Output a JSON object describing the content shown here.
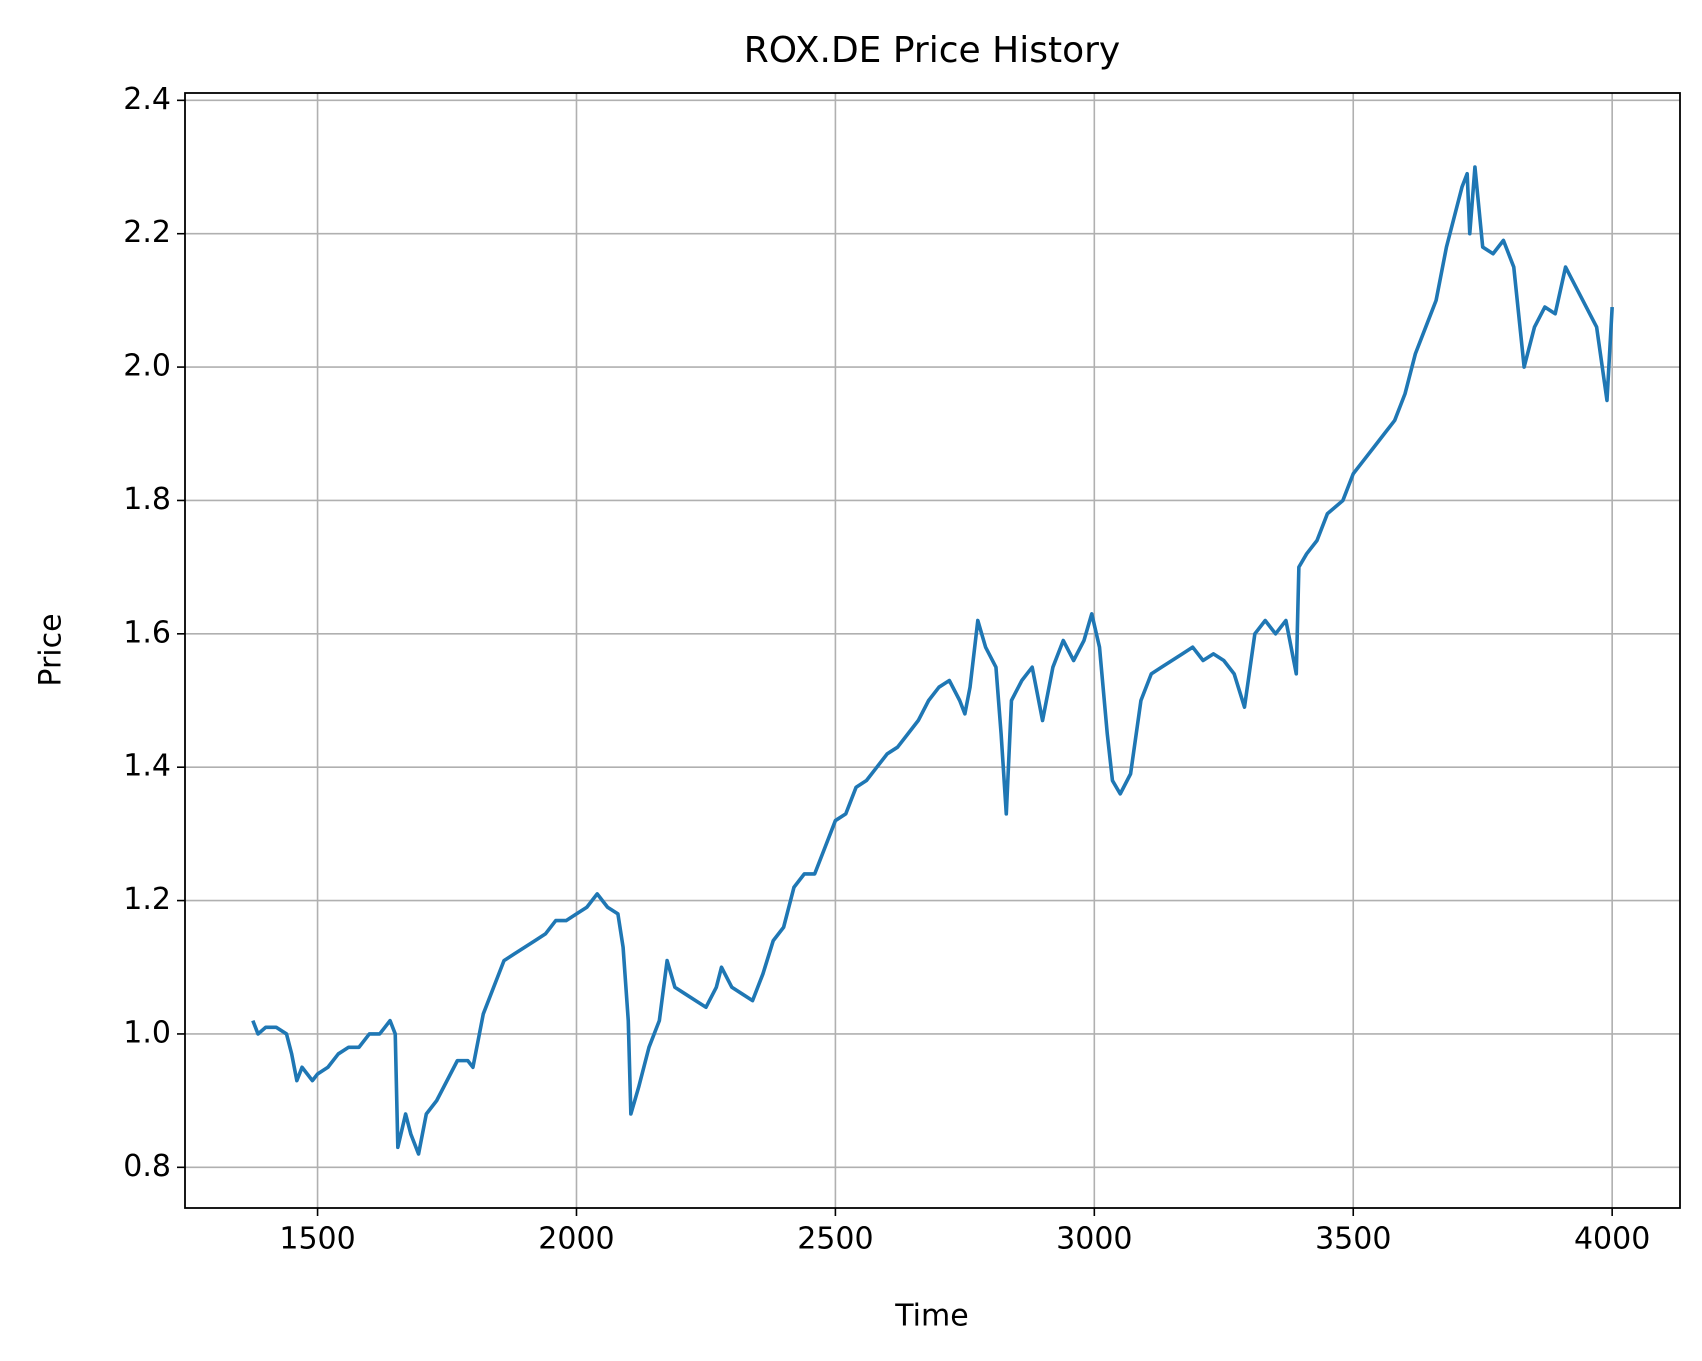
{
  "chart_data": {
    "type": "line",
    "title": "ROX.DE Price History",
    "x_label": "Time",
    "y_label": "Price",
    "color": "#1f77b4",
    "grid": true,
    "xlim": [
      1244,
      4131
    ],
    "ylim": [
      0.739,
      2.411
    ],
    "xticks": [
      1500,
      2000,
      2500,
      3000,
      3500,
      4000
    ],
    "yticks": [
      0.8,
      {
        "value": 1.0,
        "label": "1.0"
      },
      1.2,
      1.4,
      1.6,
      1.8,
      {
        "value": 2.0,
        "label": "2.0"
      },
      2.2,
      2.4
    ],
    "x": [
      1375,
      1385,
      1400,
      1420,
      1440,
      1450,
      1460,
      1470,
      1490,
      1500,
      1520,
      1540,
      1560,
      1580,
      1600,
      1620,
      1640,
      1650,
      1655,
      1670,
      1680,
      1695,
      1710,
      1730,
      1750,
      1770,
      1790,
      1800,
      1820,
      1840,
      1860,
      1880,
      1900,
      1920,
      1940,
      1960,
      1980,
      2000,
      2020,
      2040,
      2060,
      2080,
      2090,
      2100,
      2105,
      2120,
      2140,
      2160,
      2175,
      2190,
      2210,
      2230,
      2250,
      2270,
      2280,
      2300,
      2320,
      2340,
      2360,
      2380,
      2400,
      2420,
      2440,
      2460,
      2480,
      2500,
      2520,
      2540,
      2560,
      2580,
      2600,
      2620,
      2640,
      2660,
      2680,
      2700,
      2720,
      2740,
      2750,
      2760,
      2775,
      2790,
      2810,
      2820,
      2830,
      2840,
      2860,
      2880,
      2900,
      2920,
      2940,
      2960,
      2980,
      2995,
      3010,
      3025,
      3035,
      3050,
      3070,
      3090,
      3110,
      3130,
      3150,
      3170,
      3190,
      3210,
      3230,
      3250,
      3270,
      3290,
      3310,
      3330,
      3350,
      3370,
      3390,
      3395,
      3410,
      3430,
      3450,
      3480,
      3500,
      3520,
      3540,
      3560,
      3580,
      3600,
      3620,
      3640,
      3660,
      3680,
      3700,
      3710,
      3720,
      3725,
      3735,
      3750,
      3770,
      3790,
      3810,
      3830,
      3850,
      3870,
      3890,
      3910,
      3930,
      3950,
      3970,
      3990,
      4000
    ],
    "values": [
      1.02,
      1.0,
      1.01,
      1.01,
      1.0,
      0.97,
      0.93,
      0.95,
      0.93,
      0.94,
      0.95,
      0.97,
      0.98,
      0.98,
      1.0,
      1.0,
      1.02,
      1.0,
      0.83,
      0.88,
      0.85,
      0.82,
      0.88,
      0.9,
      0.93,
      0.96,
      0.96,
      0.95,
      1.03,
      1.07,
      1.11,
      1.12,
      1.13,
      1.14,
      1.15,
      1.17,
      1.17,
      1.18,
      1.19,
      1.21,
      1.19,
      1.18,
      1.13,
      1.02,
      0.88,
      0.92,
      0.98,
      1.02,
      1.11,
      1.07,
      1.06,
      1.05,
      1.04,
      1.07,
      1.1,
      1.07,
      1.06,
      1.05,
      1.09,
      1.14,
      1.16,
      1.22,
      1.24,
      1.24,
      1.28,
      1.32,
      1.33,
      1.37,
      1.38,
      1.4,
      1.42,
      1.43,
      1.45,
      1.47,
      1.5,
      1.52,
      1.53,
      1.5,
      1.48,
      1.52,
      1.62,
      1.58,
      1.55,
      1.45,
      1.33,
      1.5,
      1.53,
      1.55,
      1.47,
      1.55,
      1.59,
      1.56,
      1.59,
      1.63,
      1.58,
      1.45,
      1.38,
      1.36,
      1.39,
      1.5,
      1.54,
      1.55,
      1.56,
      1.57,
      1.58,
      1.56,
      1.57,
      1.56,
      1.54,
      1.49,
      1.6,
      1.62,
      1.6,
      1.62,
      1.54,
      1.7,
      1.72,
      1.74,
      1.78,
      1.8,
      1.84,
      1.86,
      1.88,
      1.9,
      1.92,
      1.96,
      2.02,
      2.06,
      2.1,
      2.18,
      2.24,
      2.27,
      2.29,
      2.2,
      2.3,
      2.18,
      2.17,
      2.19,
      2.15,
      2.0,
      2.06,
      2.09,
      2.08,
      2.15,
      2.12,
      2.09,
      2.06,
      1.95,
      2.09
    ]
  }
}
